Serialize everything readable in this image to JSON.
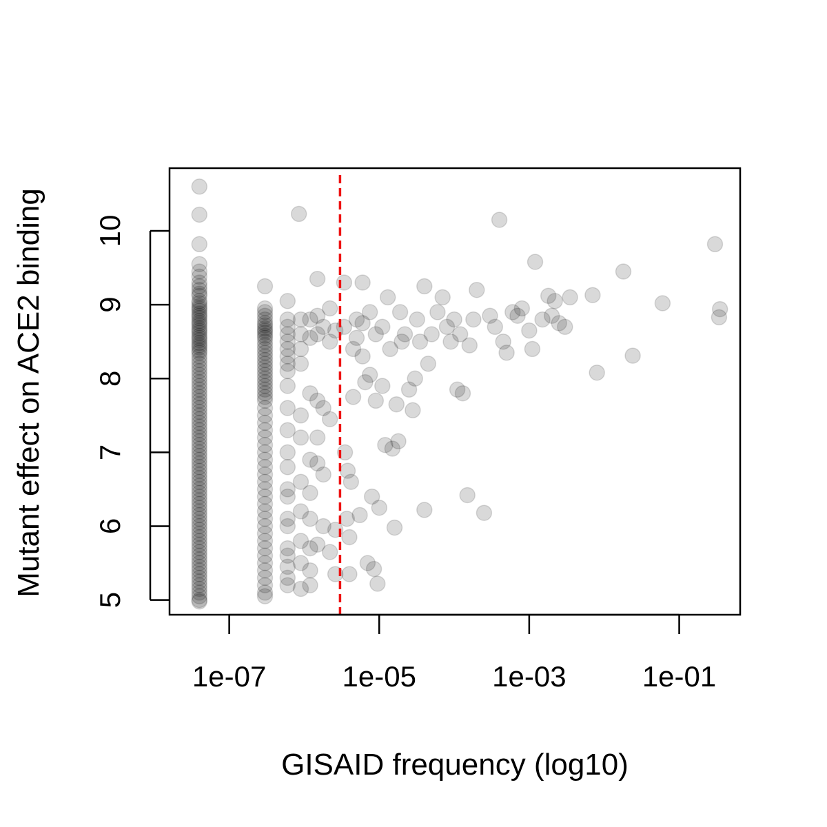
{
  "chart_data": {
    "type": "scatter",
    "title": "",
    "xlabel": "GISAID frequency (log10)",
    "ylabel": "Mutant effect on ACE2 binding",
    "x_scale": "log10",
    "xlim": [
      1.6e-08,
      0.65
    ],
    "ylim": [
      4.8,
      10.85
    ],
    "x_ticks": [
      {
        "value": 1e-07,
        "label": "1e-07"
      },
      {
        "value": 1e-05,
        "label": "1e-05"
      },
      {
        "value": 0.001,
        "label": "1e-03"
      },
      {
        "value": 0.1,
        "label": "1e-01"
      }
    ],
    "y_ticks": [
      {
        "value": 5,
        "label": "5"
      },
      {
        "value": 6,
        "label": "6"
      },
      {
        "value": 7,
        "label": "7"
      },
      {
        "value": 8,
        "label": "8"
      },
      {
        "value": 9,
        "label": "9"
      },
      {
        "value": 10,
        "label": "10"
      }
    ],
    "grid": false,
    "legend": "none",
    "threshold_line": {
      "x": 3e-06,
      "color": "#ee1111",
      "style": "dashed"
    },
    "point_color": "#000000",
    "point_alpha": 0.15,
    "series": [
      {
        "points": [
          [
            4e-08,
            10.6
          ],
          [
            4e-08,
            10.22
          ],
          [
            4e-08,
            9.82
          ],
          [
            4e-08,
            9.55
          ],
          [
            4e-08,
            9.45
          ],
          [
            4e-08,
            9.38
          ],
          [
            4e-08,
            9.3
          ],
          [
            4e-08,
            9.25
          ],
          [
            4e-08,
            9.2
          ],
          [
            4e-08,
            9.15
          ],
          [
            4e-08,
            9.12
          ],
          [
            4e-08,
            9.05
          ],
          [
            4e-08,
            9.02
          ],
          [
            4e-08,
            8.98
          ],
          [
            4e-08,
            8.95
          ],
          [
            4e-08,
            8.92
          ],
          [
            4e-08,
            8.88
          ],
          [
            4e-08,
            8.85
          ],
          [
            4e-08,
            8.82
          ],
          [
            4e-08,
            8.78
          ],
          [
            4e-08,
            8.75
          ],
          [
            4e-08,
            8.72
          ],
          [
            4e-08,
            8.68
          ],
          [
            4e-08,
            8.65
          ],
          [
            4e-08,
            8.62
          ],
          [
            4e-08,
            8.58
          ],
          [
            4e-08,
            8.55
          ],
          [
            4e-08,
            8.52
          ],
          [
            4e-08,
            8.48
          ],
          [
            4e-08,
            8.45
          ],
          [
            4e-08,
            8.42
          ],
          [
            4e-08,
            8.38
          ],
          [
            4e-08,
            8.35
          ],
          [
            4e-08,
            8.3
          ],
          [
            4e-08,
            8.25
          ],
          [
            4e-08,
            8.2
          ],
          [
            4e-08,
            8.15
          ],
          [
            4e-08,
            8.1
          ],
          [
            4e-08,
            8.05
          ],
          [
            4e-08,
            8.0
          ],
          [
            4e-08,
            7.95
          ],
          [
            4e-08,
            7.9
          ],
          [
            4e-08,
            7.85
          ],
          [
            4e-08,
            7.8
          ],
          [
            4e-08,
            7.75
          ],
          [
            4e-08,
            7.7
          ],
          [
            4e-08,
            7.65
          ],
          [
            4e-08,
            7.6
          ],
          [
            4e-08,
            7.55
          ],
          [
            4e-08,
            7.5
          ],
          [
            4e-08,
            7.45
          ],
          [
            4e-08,
            7.4
          ],
          [
            4e-08,
            7.35
          ],
          [
            4e-08,
            7.3
          ],
          [
            4e-08,
            7.25
          ],
          [
            4e-08,
            7.2
          ],
          [
            4e-08,
            7.15
          ],
          [
            4e-08,
            7.1
          ],
          [
            4e-08,
            7.05
          ],
          [
            4e-08,
            7.0
          ],
          [
            4e-08,
            6.95
          ],
          [
            4e-08,
            6.9
          ],
          [
            4e-08,
            6.85
          ],
          [
            4e-08,
            6.8
          ],
          [
            4e-08,
            6.75
          ],
          [
            4e-08,
            6.7
          ],
          [
            4e-08,
            6.65
          ],
          [
            4e-08,
            6.6
          ],
          [
            4e-08,
            6.55
          ],
          [
            4e-08,
            6.5
          ],
          [
            4e-08,
            6.45
          ],
          [
            4e-08,
            6.4
          ],
          [
            4e-08,
            6.35
          ],
          [
            4e-08,
            6.3
          ],
          [
            4e-08,
            6.25
          ],
          [
            4e-08,
            6.2
          ],
          [
            4e-08,
            6.15
          ],
          [
            4e-08,
            6.1
          ],
          [
            4e-08,
            6.05
          ],
          [
            4e-08,
            6.0
          ],
          [
            4e-08,
            5.95
          ],
          [
            4e-08,
            5.9
          ],
          [
            4e-08,
            5.85
          ],
          [
            4e-08,
            5.8
          ],
          [
            4e-08,
            5.75
          ],
          [
            4e-08,
            5.7
          ],
          [
            4e-08,
            5.65
          ],
          [
            4e-08,
            5.6
          ],
          [
            4e-08,
            5.55
          ],
          [
            4e-08,
            5.5
          ],
          [
            4e-08,
            5.45
          ],
          [
            4e-08,
            5.4
          ],
          [
            4e-08,
            5.35
          ],
          [
            4e-08,
            5.3
          ],
          [
            4e-08,
            5.25
          ],
          [
            4e-08,
            5.2
          ],
          [
            4e-08,
            5.15
          ],
          [
            4e-08,
            5.1
          ],
          [
            4e-08,
            5.05
          ],
          [
            4e-08,
            5.0
          ],
          [
            4e-08,
            4.98
          ],
          [
            3e-07,
            9.25
          ],
          [
            3e-07,
            8.95
          ],
          [
            3e-07,
            8.9
          ],
          [
            3e-07,
            8.85
          ],
          [
            3e-07,
            8.8
          ],
          [
            3e-07,
            8.75
          ],
          [
            3e-07,
            8.72
          ],
          [
            3e-07,
            8.68
          ],
          [
            3e-07,
            8.65
          ],
          [
            3e-07,
            8.62
          ],
          [
            3e-07,
            8.58
          ],
          [
            3e-07,
            8.55
          ],
          [
            3e-07,
            8.5
          ],
          [
            3e-07,
            8.45
          ],
          [
            3e-07,
            8.4
          ],
          [
            3e-07,
            8.35
          ],
          [
            3e-07,
            8.3
          ],
          [
            3e-07,
            8.25
          ],
          [
            3e-07,
            8.2
          ],
          [
            3e-07,
            8.15
          ],
          [
            3e-07,
            8.1
          ],
          [
            3e-07,
            8.05
          ],
          [
            3e-07,
            8.0
          ],
          [
            3e-07,
            7.95
          ],
          [
            3e-07,
            7.9
          ],
          [
            3e-07,
            7.85
          ],
          [
            3e-07,
            7.8
          ],
          [
            3e-07,
            7.75
          ],
          [
            3e-07,
            7.7
          ],
          [
            3e-07,
            7.6
          ],
          [
            3e-07,
            7.5
          ],
          [
            3e-07,
            7.4
          ],
          [
            3e-07,
            7.3
          ],
          [
            3e-07,
            7.2
          ],
          [
            3e-07,
            7.1
          ],
          [
            3e-07,
            7.0
          ],
          [
            3e-07,
            6.9
          ],
          [
            3e-07,
            6.8
          ],
          [
            3e-07,
            6.7
          ],
          [
            3e-07,
            6.6
          ],
          [
            3e-07,
            6.5
          ],
          [
            3e-07,
            6.4
          ],
          [
            3e-07,
            6.3
          ],
          [
            3e-07,
            6.2
          ],
          [
            3e-07,
            6.1
          ],
          [
            3e-07,
            6.0
          ],
          [
            3e-07,
            5.9
          ],
          [
            3e-07,
            5.8
          ],
          [
            3e-07,
            5.7
          ],
          [
            3e-07,
            5.6
          ],
          [
            3e-07,
            5.5
          ],
          [
            3e-07,
            5.4
          ],
          [
            3e-07,
            5.3
          ],
          [
            3e-07,
            5.2
          ],
          [
            3e-07,
            5.1
          ],
          [
            3e-07,
            5.05
          ],
          [
            6e-07,
            9.05
          ],
          [
            6e-07,
            8.8
          ],
          [
            6e-07,
            8.7
          ],
          [
            6e-07,
            8.6
          ],
          [
            6e-07,
            8.5
          ],
          [
            6e-07,
            8.4
          ],
          [
            6e-07,
            8.3
          ],
          [
            6e-07,
            8.2
          ],
          [
            6e-07,
            8.1
          ],
          [
            6e-07,
            7.9
          ],
          [
            6e-07,
            7.6
          ],
          [
            6e-07,
            7.3
          ],
          [
            6e-07,
            7.0
          ],
          [
            6e-07,
            6.8
          ],
          [
            6e-07,
            6.5
          ],
          [
            6e-07,
            6.4
          ],
          [
            6e-07,
            6.1
          ],
          [
            6e-07,
            6.0
          ],
          [
            6e-07,
            5.7
          ],
          [
            6e-07,
            5.6
          ],
          [
            6e-07,
            5.45
          ],
          [
            6e-07,
            5.3
          ],
          [
            6e-07,
            5.2
          ],
          [
            8.5e-07,
            10.23
          ],
          [
            9e-07,
            8.8
          ],
          [
            9e-07,
            8.6
          ],
          [
            9e-07,
            8.4
          ],
          [
            9e-07,
            8.2
          ],
          [
            9e-07,
            7.5
          ],
          [
            9e-07,
            7.2
          ],
          [
            9e-07,
            6.6
          ],
          [
            9e-07,
            6.2
          ],
          [
            9e-07,
            5.8
          ],
          [
            9e-07,
            5.5
          ],
          [
            9e-07,
            5.15
          ],
          [
            1.2e-06,
            8.8
          ],
          [
            1.2e-06,
            8.55
          ],
          [
            1.2e-06,
            7.8
          ],
          [
            1.2e-06,
            6.9
          ],
          [
            1.2e-06,
            6.45
          ],
          [
            1.2e-06,
            6.1
          ],
          [
            1.2e-06,
            5.7
          ],
          [
            1.2e-06,
            5.4
          ],
          [
            1.2e-06,
            5.2
          ],
          [
            1.5e-06,
            9.35
          ],
          [
            1.5e-06,
            8.85
          ],
          [
            1.5e-06,
            8.6
          ],
          [
            1.5e-06,
            7.7
          ],
          [
            1.5e-06,
            7.2
          ],
          [
            1.5e-06,
            6.85
          ],
          [
            1.5e-06,
            5.75
          ],
          [
            1.8e-06,
            8.7
          ],
          [
            1.8e-06,
            7.6
          ],
          [
            1.8e-06,
            6.7
          ],
          [
            1.8e-06,
            6.0
          ],
          [
            2.2e-06,
            8.95
          ],
          [
            2.2e-06,
            8.5
          ],
          [
            2.2e-06,
            7.45
          ],
          [
            2.2e-06,
            5.65
          ],
          [
            2.6e-06,
            8.65
          ],
          [
            2.6e-06,
            5.95
          ],
          [
            2.6e-06,
            5.35
          ],
          [
            3.4e-06,
            9.3
          ],
          [
            3.4e-06,
            8.7
          ],
          [
            3.5e-06,
            7.0
          ],
          [
            3.7e-06,
            6.1
          ],
          [
            3.8e-06,
            6.75
          ],
          [
            4e-06,
            5.85
          ],
          [
            4e-06,
            5.35
          ],
          [
            4.2e-06,
            6.6
          ],
          [
            4.5e-06,
            8.4
          ],
          [
            4.5e-06,
            7.75
          ],
          [
            5e-06,
            8.8
          ],
          [
            5e-06,
            8.55
          ],
          [
            5.5e-06,
            6.15
          ],
          [
            6e-06,
            9.3
          ],
          [
            6e-06,
            8.75
          ],
          [
            6e-06,
            8.3
          ],
          [
            6.5e-06,
            7.95
          ],
          [
            7e-06,
            5.5
          ],
          [
            7.5e-06,
            8.9
          ],
          [
            7.5e-06,
            8.05
          ],
          [
            8e-06,
            6.4
          ],
          [
            8.5e-06,
            5.42
          ],
          [
            9e-06,
            7.7
          ],
          [
            9e-06,
            8.6
          ],
          [
            9.5e-06,
            5.22
          ],
          [
            1e-05,
            6.25
          ],
          [
            1.1e-05,
            8.7
          ],
          [
            1.1e-05,
            7.9
          ],
          [
            1.2e-05,
            7.1
          ],
          [
            1.3e-05,
            9.1
          ],
          [
            1.4e-05,
            8.4
          ],
          [
            1.5e-05,
            7.05
          ],
          [
            1.6e-05,
            5.98
          ],
          [
            1.7e-05,
            7.65
          ],
          [
            1.8e-05,
            7.15
          ],
          [
            1.9e-05,
            8.9
          ],
          [
            2e-05,
            8.5
          ],
          [
            2.2e-05,
            8.6
          ],
          [
            2.5e-05,
            7.85
          ],
          [
            2.8e-05,
            7.57
          ],
          [
            3e-05,
            8.0
          ],
          [
            3.2e-05,
            8.8
          ],
          [
            3.5e-05,
            8.5
          ],
          [
            4e-05,
            9.25
          ],
          [
            4e-05,
            6.22
          ],
          [
            4.5e-05,
            8.2
          ],
          [
            5e-05,
            8.6
          ],
          [
            6e-05,
            8.9
          ],
          [
            7e-05,
            9.1
          ],
          [
            8e-05,
            8.7
          ],
          [
            9e-05,
            8.5
          ],
          [
            0.0001,
            8.8
          ],
          [
            0.00011,
            7.85
          ],
          [
            0.00012,
            8.6
          ],
          [
            0.00013,
            7.8
          ],
          [
            0.00015,
            6.42
          ],
          [
            0.00016,
            8.45
          ],
          [
            0.00018,
            8.8
          ],
          [
            0.0002,
            9.2
          ],
          [
            0.00025,
            6.18
          ],
          [
            0.0003,
            8.85
          ],
          [
            0.00035,
            8.7
          ],
          [
            0.0004,
            10.15
          ],
          [
            0.00045,
            8.5
          ],
          [
            0.0005,
            8.35
          ],
          [
            0.0006,
            8.9
          ],
          [
            0.0007,
            8.85
          ],
          [
            0.0008,
            8.95
          ],
          [
            0.001,
            8.65
          ],
          [
            0.0011,
            8.4
          ],
          [
            0.0012,
            9.58
          ],
          [
            0.0015,
            8.8
          ],
          [
            0.0018,
            9.12
          ],
          [
            0.002,
            8.85
          ],
          [
            0.0022,
            9.05
          ],
          [
            0.0025,
            8.75
          ],
          [
            0.003,
            8.7
          ],
          [
            0.0035,
            9.1
          ],
          [
            0.007,
            9.13
          ],
          [
            0.008,
            8.08
          ],
          [
            0.018,
            9.45
          ],
          [
            0.024,
            8.31
          ],
          [
            0.06,
            9.02
          ],
          [
            0.3,
            9.82
          ],
          [
            0.35,
            8.94
          ],
          [
            0.34,
            8.83
          ]
        ]
      }
    ]
  }
}
